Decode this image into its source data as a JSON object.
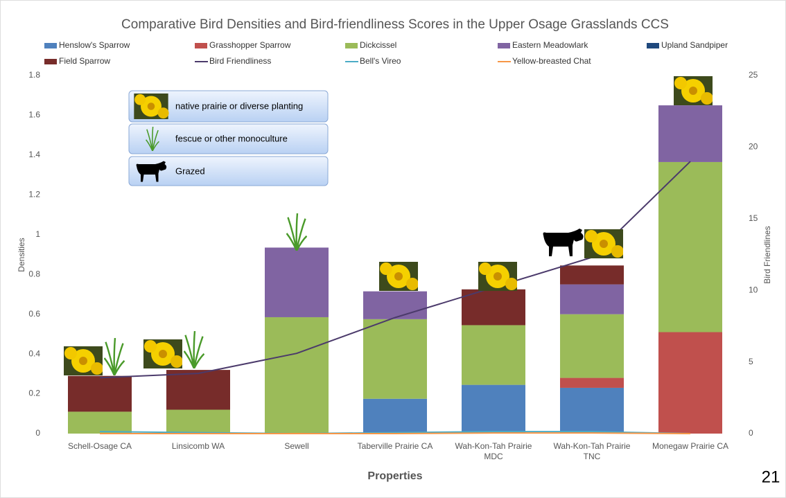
{
  "chart_data": {
    "type": "stacked-bar-line",
    "title": "Comparative Bird Densities and Bird-friendliness Scores in the Upper Osage Grasslands CCS",
    "x_label": "Properties",
    "y_label": "Densities",
    "y2_label": "Bird Friendlines",
    "categories": [
      "Schell-Osage CA",
      "Linsicomb WA",
      "Sewell",
      "Taberville Prairie CA",
      "Wah-Kon-Tah Prairie MDC",
      "Wah-Kon-Tah Prairie TNC",
      "Monegaw Prairie CA"
    ],
    "series": [
      {
        "name": "Henslow's Sparrow",
        "color": "#4f81bd",
        "values": [
          0,
          0,
          0,
          0.175,
          0.245,
          0.23,
          0
        ]
      },
      {
        "name": "Grasshopper Sparrow",
        "color": "#c0504d",
        "values": [
          0,
          0,
          0,
          0,
          0,
          0.05,
          0.51
        ]
      },
      {
        "name": "Dickcissel",
        "color": "#9bbb59",
        "values": [
          0.11,
          0.12,
          0.585,
          0.4,
          0.3,
          0.32,
          0.855
        ]
      },
      {
        "name": "Eastern Meadowlark",
        "color": "#8064a2",
        "values": [
          0,
          0,
          0.35,
          0.14,
          0,
          0.15,
          0.285
        ]
      },
      {
        "name": "Upland Sandpiper",
        "color": "#1f497d",
        "values": [
          0,
          0,
          0,
          0,
          0,
          0,
          0
        ]
      },
      {
        "name": "Field Sparrow",
        "color": "#772c2a",
        "values": [
          0.18,
          0.2,
          0,
          0,
          0.18,
          0.095,
          0
        ]
      },
      {
        "name": "Bird Friendliness",
        "color": "#4b3a6b",
        "line": true,
        "axis": "y2",
        "values": [
          3.9,
          4.2,
          5.6,
          8.1,
          10.2,
          12.3,
          19
        ]
      },
      {
        "name": "Bell's Vireo",
        "color": "#4bacc6",
        "line": true,
        "values": [
          0.01,
          0.005,
          0,
          0.005,
          0.01,
          0.01,
          0
        ]
      },
      {
        "name": "Yellow-breasted Chat",
        "color": "#f79646",
        "line": true,
        "values": [
          0,
          0,
          0,
          0,
          0.003,
          0.003,
          0
        ]
      }
    ],
    "ylim": [
      0,
      1.8
    ],
    "yticks": [
      0,
      0.2,
      0.4,
      0.6,
      0.8,
      1,
      1.2,
      1.4,
      1.6,
      1.8
    ],
    "y2lim": [
      0,
      25
    ],
    "y2ticks": [
      0,
      5,
      10,
      15,
      20,
      25
    ],
    "legend": "top",
    "grid": false,
    "annotations": [
      "native prairie or diverse planting",
      "fescue or other monoculture",
      "Grazed"
    ],
    "page_number": "21"
  }
}
